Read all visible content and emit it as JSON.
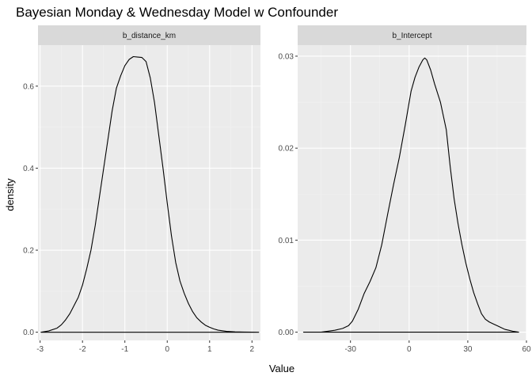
{
  "chart_data": {
    "type": "line",
    "title": "Bayesian Monday & Wednesday Model w Confounder",
    "xlabel": "Value",
    "ylabel": "density",
    "colors": {
      "background": "#ffffff",
      "panel": "#ebebeb",
      "strip": "#d9d9d9",
      "grid_major": "#ffffff",
      "grid_minor": "#f2f2f2",
      "line": "#000000",
      "tick_text": "#4d4d4d"
    },
    "panels": [
      {
        "strip": "b_distance_km",
        "xlim": [
          -3.05,
          2.2
        ],
        "ylim": [
          -0.02,
          0.7
        ],
        "x_ticks": [
          -3,
          -2,
          -1,
          0,
          1,
          2
        ],
        "x_tick_labels": [
          "-3",
          "-2",
          "-1",
          "0",
          "1",
          "2"
        ],
        "y_ticks": [
          0.0,
          0.2,
          0.4,
          0.6
        ],
        "y_tick_labels": [
          "0.0",
          "0.2",
          "0.4",
          "0.6"
        ],
        "x": [
          -2.98,
          -2.8,
          -2.6,
          -2.5,
          -2.4,
          -2.3,
          -2.2,
          -2.1,
          -2.0,
          -1.9,
          -1.8,
          -1.7,
          -1.6,
          -1.5,
          -1.4,
          -1.3,
          -1.2,
          -1.1,
          -1.0,
          -0.9,
          -0.8,
          -0.7,
          -0.6,
          -0.5,
          -0.4,
          -0.3,
          -0.2,
          -0.1,
          0.0,
          0.1,
          0.2,
          0.3,
          0.4,
          0.5,
          0.6,
          0.7,
          0.8,
          0.9,
          1.0,
          1.1,
          1.2,
          1.4,
          1.6,
          1.8,
          2.0,
          2.16
        ],
        "density": [
          0.0,
          0.003,
          0.01,
          0.018,
          0.03,
          0.045,
          0.065,
          0.085,
          0.115,
          0.155,
          0.2,
          0.26,
          0.33,
          0.4,
          0.47,
          0.54,
          0.595,
          0.625,
          0.65,
          0.665,
          0.672,
          0.671,
          0.67,
          0.66,
          0.62,
          0.56,
          0.48,
          0.4,
          0.315,
          0.235,
          0.17,
          0.125,
          0.095,
          0.07,
          0.05,
          0.035,
          0.025,
          0.017,
          0.012,
          0.008,
          0.005,
          0.002,
          0.001,
          0.0005,
          0.0002,
          0.0
        ]
      },
      {
        "strip": "b_Intercept",
        "xlim": [
          -57,
          60
        ],
        "ylim": [
          -0.0009,
          0.0312
        ],
        "x_ticks": [
          -30,
          0,
          30,
          60
        ],
        "x_tick_labels": [
          "-30",
          "0",
          "30",
          "60"
        ],
        "y_ticks": [
          0.0,
          0.01,
          0.02,
          0.03
        ],
        "y_tick_labels": [
          "0.00",
          "0.01",
          "0.02",
          "0.03"
        ],
        "x": [
          -54,
          -45,
          -38,
          -34,
          -31,
          -29,
          -26,
          -23,
          -20,
          -17,
          -14,
          -11,
          -8,
          -5,
          -2,
          1,
          3,
          5,
          7,
          8,
          9,
          11,
          13,
          16,
          19,
          21,
          23,
          25,
          27,
          29,
          31,
          33,
          35,
          37,
          39,
          41,
          43,
          45,
          47,
          49,
          51,
          53,
          56
        ],
        "density": [
          0.0,
          0.0,
          0.0002,
          0.0004,
          0.0007,
          0.0012,
          0.0025,
          0.0042,
          0.0055,
          0.007,
          0.0095,
          0.0128,
          0.016,
          0.019,
          0.0225,
          0.0262,
          0.0277,
          0.0288,
          0.0296,
          0.0298,
          0.0296,
          0.0285,
          0.027,
          0.025,
          0.022,
          0.018,
          0.0145,
          0.0118,
          0.0095,
          0.0075,
          0.0058,
          0.0043,
          0.0031,
          0.002,
          0.0014,
          0.0011,
          0.0009,
          0.0007,
          0.0005,
          0.0003,
          0.0002,
          0.0001,
          0.0
        ]
      }
    ]
  }
}
